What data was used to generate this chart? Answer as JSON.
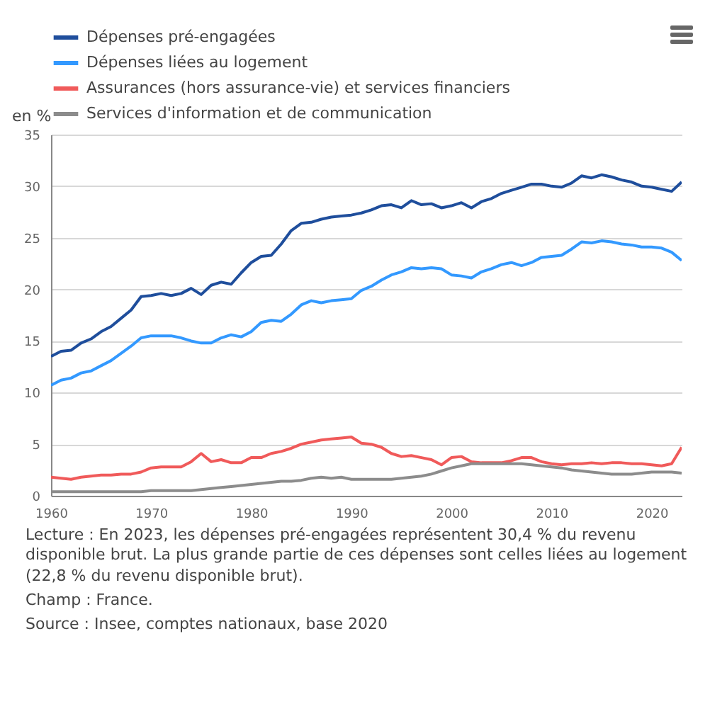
{
  "chart_data": {
    "type": "line",
    "ylabel": "en %",
    "legend": "top left",
    "grid": "y",
    "x": [
      1960,
      1961,
      1962,
      1963,
      1964,
      1965,
      1966,
      1967,
      1968,
      1969,
      1970,
      1971,
      1972,
      1973,
      1974,
      1975,
      1976,
      1977,
      1978,
      1979,
      1980,
      1981,
      1982,
      1983,
      1984,
      1985,
      1986,
      1987,
      1988,
      1989,
      1990,
      1991,
      1992,
      1993,
      1994,
      1995,
      1996,
      1997,
      1998,
      1999,
      2000,
      2001,
      2002,
      2003,
      2004,
      2005,
      2006,
      2007,
      2008,
      2009,
      2010,
      2011,
      2012,
      2013,
      2014,
      2015,
      2016,
      2017,
      2018,
      2019,
      2020,
      2021,
      2022,
      2023
    ],
    "xlim": [
      1960,
      2023
    ],
    "xticks": [
      1960,
      1970,
      1980,
      1990,
      2000,
      2010,
      2020
    ],
    "ylim": [
      0,
      35
    ],
    "yticks": [
      0,
      5,
      10,
      15,
      20,
      25,
      30,
      35
    ],
    "series": [
      {
        "name": "Dépenses pré-engagées",
        "color": "#1f4e9c",
        "values": [
          13.5,
          14.0,
          14.1,
          14.8,
          15.2,
          15.9,
          16.4,
          17.2,
          18.0,
          19.3,
          19.4,
          19.6,
          19.4,
          19.6,
          20.1,
          19.5,
          20.4,
          20.7,
          20.5,
          21.6,
          22.6,
          23.2,
          23.3,
          24.4,
          25.7,
          26.4,
          26.5,
          26.8,
          27.0,
          27.1,
          27.2,
          27.4,
          27.7,
          28.1,
          28.2,
          27.9,
          28.6,
          28.2,
          28.3,
          27.9,
          28.1,
          28.4,
          27.9,
          28.5,
          28.8,
          29.3,
          29.6,
          29.9,
          30.2,
          30.2,
          30.0,
          29.9,
          30.3,
          31.0,
          30.8,
          31.1,
          30.9,
          30.6,
          30.4,
          30.0,
          29.9,
          29.7,
          29.5,
          30.4
        ]
      },
      {
        "name": "Dépenses liées au logement",
        "color": "#3399ff",
        "values": [
          10.7,
          11.2,
          11.4,
          11.9,
          12.1,
          12.6,
          13.1,
          13.8,
          14.5,
          15.3,
          15.5,
          15.5,
          15.5,
          15.3,
          15.0,
          14.8,
          14.8,
          15.3,
          15.6,
          15.4,
          15.9,
          16.8,
          17.0,
          16.9,
          17.6,
          18.5,
          18.9,
          18.7,
          18.9,
          19.0,
          19.1,
          19.9,
          20.3,
          20.9,
          21.4,
          21.7,
          22.1,
          22.0,
          22.1,
          22.0,
          21.4,
          21.3,
          21.1,
          21.7,
          22.0,
          22.4,
          22.6,
          22.3,
          22.6,
          23.1,
          23.2,
          23.3,
          23.9,
          24.6,
          24.5,
          24.7,
          24.6,
          24.4,
          24.3,
          24.1,
          24.1,
          24.0,
          23.6,
          22.8
        ]
      },
      {
        "name": "Assurances (hors assurance-vie) et services financiers",
        "color": "#f05a5a",
        "values": [
          1.8,
          1.7,
          1.6,
          1.8,
          1.9,
          2.0,
          2.0,
          2.1,
          2.1,
          2.3,
          2.7,
          2.8,
          2.8,
          2.8,
          3.3,
          4.1,
          3.3,
          3.5,
          3.2,
          3.2,
          3.7,
          3.7,
          4.1,
          4.3,
          4.6,
          5.0,
          5.2,
          5.4,
          5.5,
          5.6,
          5.7,
          5.1,
          5.0,
          4.7,
          4.1,
          3.8,
          3.9,
          3.7,
          3.5,
          3.0,
          3.7,
          3.8,
          3.3,
          3.2,
          3.2,
          3.2,
          3.4,
          3.7,
          3.7,
          3.3,
          3.1,
          3.0,
          3.1,
          3.1,
          3.2,
          3.1,
          3.2,
          3.2,
          3.1,
          3.1,
          3.0,
          2.9,
          3.1,
          4.7
        ]
      },
      {
        "name": "Services d'information et de communication",
        "color": "#8c8c8c",
        "values": [
          0.4,
          0.4,
          0.4,
          0.4,
          0.4,
          0.4,
          0.4,
          0.4,
          0.4,
          0.4,
          0.5,
          0.5,
          0.5,
          0.5,
          0.5,
          0.6,
          0.7,
          0.8,
          0.9,
          1.0,
          1.1,
          1.2,
          1.3,
          1.4,
          1.4,
          1.5,
          1.7,
          1.8,
          1.7,
          1.8,
          1.6,
          1.6,
          1.6,
          1.6,
          1.6,
          1.7,
          1.8,
          1.9,
          2.1,
          2.4,
          2.7,
          2.9,
          3.1,
          3.1,
          3.1,
          3.1,
          3.1,
          3.1,
          3.0,
          2.9,
          2.8,
          2.7,
          2.5,
          2.4,
          2.3,
          2.2,
          2.1,
          2.1,
          2.1,
          2.2,
          2.3,
          2.3,
          2.3,
          2.2
        ]
      }
    ],
    "annotations": [
      "Lecture : En 2023, les dépenses pré-engagées représentent 30,4 % du revenu disponible brut. La plus grande partie de ces dépenses sont celles liées au logement (22,8 % du revenu disponible brut).",
      "Champ : France.",
      "Source : Insee, comptes nationaux, base 2020"
    ]
  }
}
